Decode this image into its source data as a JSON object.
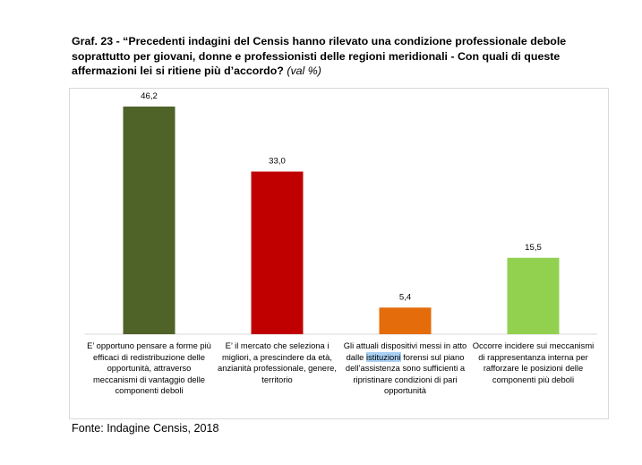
{
  "figure": {
    "title_main": "Graf. 23 - “Precedenti indagini del Censis hanno rilevato una condizione professionale debole soprattutto per giovani, donne e professionisti delle regioni meridionali - Con quali di queste affermazioni lei si ritiene più d’accordo?",
    "title_unit": "(val %)",
    "source": "Fonte: Indagine Censis, 2018"
  },
  "chart_data": {
    "type": "bar",
    "title": "Graf. 23 - “Precedenti indagini del Censis hanno rilevato una condizione professionale debole soprattutto per giovani, donne e professionisti delle regioni meridionali - Con quali di queste affermazioni lei si ritiene più d’accordo? (val %)",
    "categories": [
      "E’ opportuno pensare a forme più efficaci di redistribuzione delle opportunità, attraverso meccanismi di vantaggio delle componenti deboli",
      "E’ il mercato che seleziona i migliori, a prescindere da età, anzianità professionale, genere, territorio",
      "Gli attuali dispositivi messi in atto dalle istituzioni forensi sul piano dell’assistenza sono sufficienti a ripristinare condizioni di pari opportunità",
      "Occorre incidere sui meccanismi di rappresentanza interna per rafforzare le posizioni delle componenti più deboli"
    ],
    "values": [
      46.2,
      33.0,
      5.4,
      15.5
    ],
    "value_labels": [
      "46,2",
      "33,0",
      "5,4",
      "15,5"
    ],
    "colors": [
      "#4f6228",
      "#c00000",
      "#e46c0a",
      "#92d050"
    ],
    "ylim": [
      0,
      50
    ],
    "xlabel": "",
    "ylabel": "",
    "grid": false,
    "legend": "none",
    "highlighted_word": "istituzioni"
  }
}
